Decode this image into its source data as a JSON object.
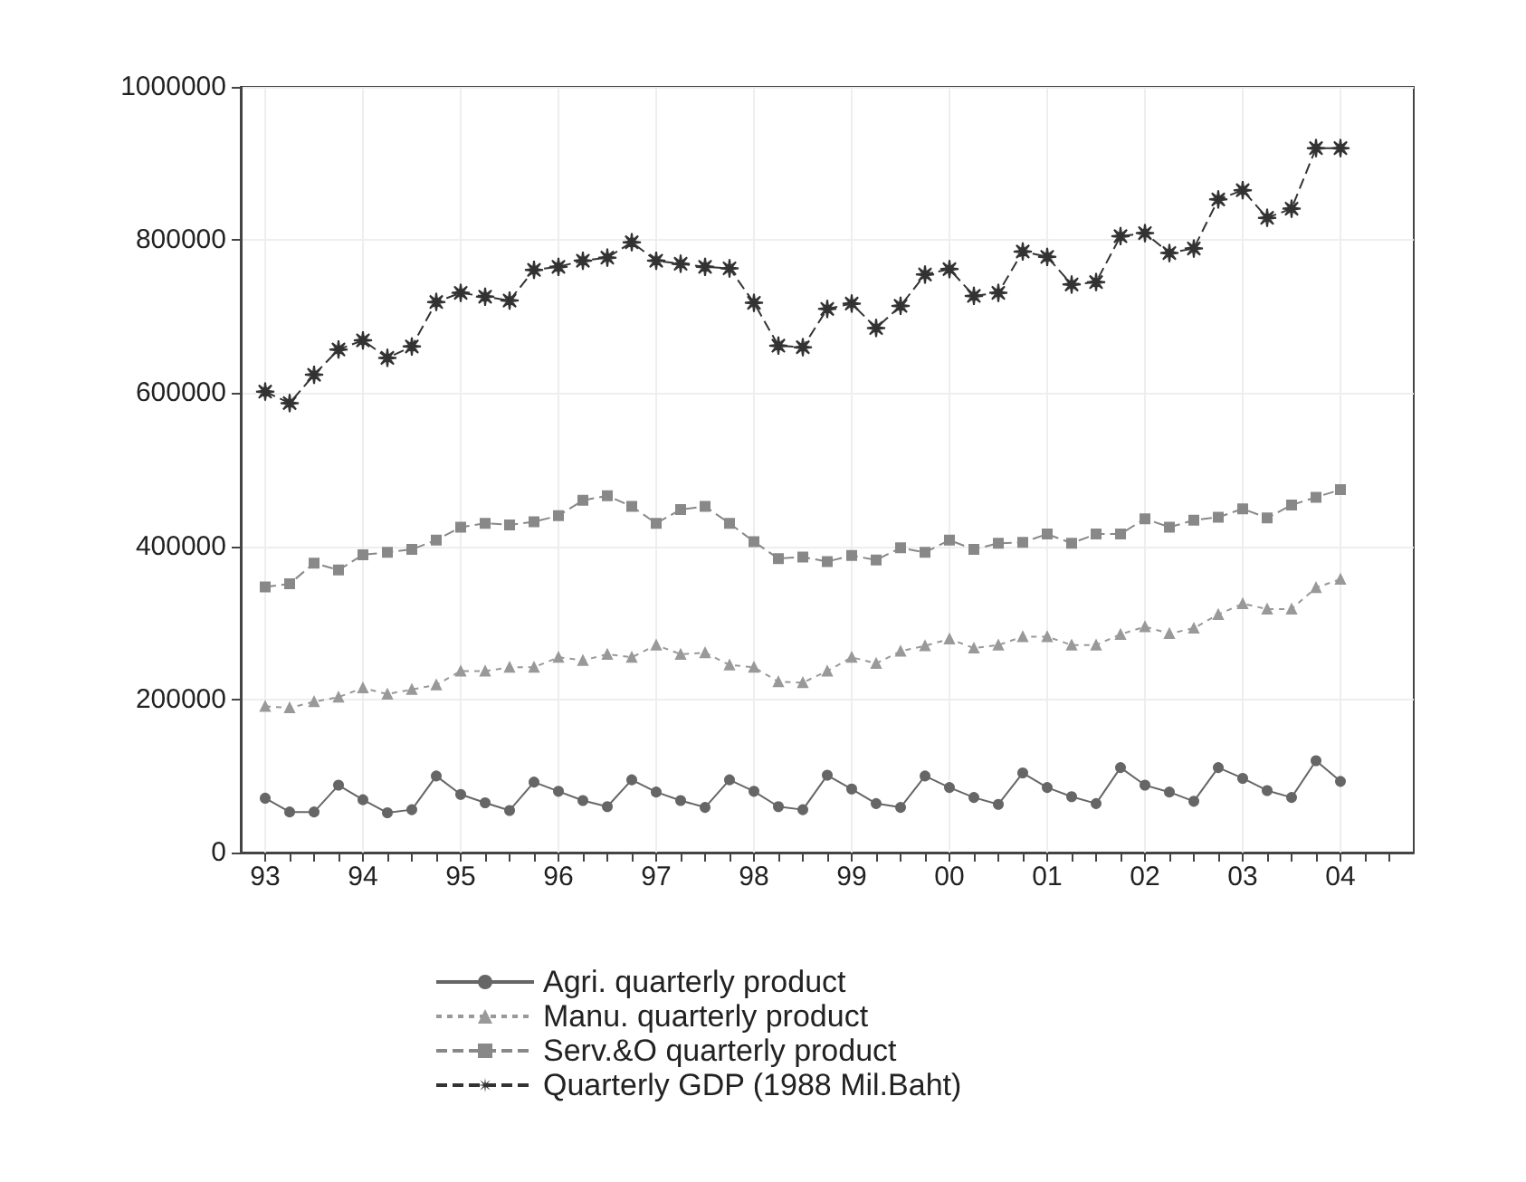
{
  "chart_data": {
    "type": "line",
    "x": [
      1993,
      1993.25,
      1993.5,
      1993.75,
      1994,
      1994.25,
      1994.5,
      1994.75,
      1995,
      1995.25,
      1995.5,
      1995.75,
      1996,
      1996.25,
      1996.5,
      1996.75,
      1997,
      1997.25,
      1997.5,
      1997.75,
      1998,
      1998.25,
      1998.5,
      1998.75,
      1999,
      1999.25,
      1999.5,
      1999.75,
      2000,
      2000.25,
      2000.5,
      2000.75,
      2001,
      2001.25,
      2001.5,
      2001.75,
      2002,
      2002.25,
      2002.5,
      2002.75,
      2003,
      2003.25,
      2003.5,
      2003.75,
      2004
    ],
    "series": [
      {
        "name": "Agri. quarterly product",
        "color": "#666666",
        "marker": "circle",
        "line_style": "solid",
        "values": [
          71000,
          53000,
          53000,
          88000,
          69000,
          52000,
          56000,
          100000,
          76000,
          65000,
          55000,
          92000,
          80000,
          68000,
          60000,
          95000,
          79000,
          68000,
          59000,
          95000,
          80000,
          60000,
          56000,
          101000,
          83000,
          64000,
          59000,
          100000,
          85000,
          72000,
          63000,
          104000,
          85000,
          73000,
          64000,
          111000,
          88000,
          79000,
          67000,
          111000,
          97000,
          81000,
          72000,
          120000,
          93000
        ]
      },
      {
        "name": "Manu. quarterly product",
        "color": "#999999",
        "marker": "triangle",
        "line_style": "dotted",
        "values": [
          191000,
          189000,
          197000,
          203000,
          215000,
          207000,
          213000,
          219000,
          237000,
          237000,
          242000,
          242000,
          255000,
          251000,
          259000,
          255000,
          271000,
          259000,
          261000,
          245000,
          242000,
          223000,
          222000,
          237000,
          255000,
          247000,
          263000,
          270000,
          279000,
          267000,
          271000,
          282000,
          282000,
          271000,
          271000,
          285000,
          295000,
          286000,
          293000,
          311000,
          325000,
          318000,
          318000,
          346000,
          357000
        ]
      },
      {
        "name": "Serv.&O quarterly product",
        "color": "#888888",
        "marker": "square",
        "line_style": "dashed",
        "values": [
          347000,
          351000,
          378000,
          369000,
          389000,
          392000,
          396000,
          408000,
          425000,
          430000,
          428000,
          432000,
          440000,
          460000,
          466000,
          452000,
          430000,
          448000,
          452000,
          430000,
          406000,
          384000,
          386000,
          380000,
          388000,
          382000,
          398000,
          392000,
          408000,
          396000,
          404000,
          405000,
          416000,
          404000,
          416000,
          416000,
          436000,
          425000,
          434000,
          438000,
          449000,
          437000,
          454000,
          464000,
          474000
        ]
      },
      {
        "name": "Quarterly GDP (1988 Mil.Baht)",
        "color": "#333333",
        "marker": "star",
        "line_style": "dashed",
        "values": [
          602000,
          587000,
          624000,
          657000,
          669000,
          646000,
          661000,
          719000,
          731000,
          726000,
          721000,
          761000,
          765000,
          773000,
          777000,
          797000,
          773000,
          769000,
          765000,
          763000,
          718000,
          662000,
          660000,
          710000,
          717000,
          685000,
          714000,
          755000,
          762000,
          727000,
          731000,
          785000,
          778000,
          742000,
          745000,
          805000,
          809000,
          783000,
          789000,
          853000,
          865000,
          829000,
          841000,
          920000,
          920000
        ]
      }
    ],
    "xlim": [
      1992.75,
      2004.75
    ],
    "xticks": [
      {
        "value": 1993,
        "label": "93"
      },
      {
        "value": 1993.25,
        "label": null
      },
      {
        "value": 1993.5,
        "label": null
      },
      {
        "value": 1993.75,
        "label": null
      },
      {
        "value": 1994,
        "label": "94"
      },
      {
        "value": 1994.25,
        "label": null
      },
      {
        "value": 1994.5,
        "label": null
      },
      {
        "value": 1994.75,
        "label": null
      },
      {
        "value": 1995,
        "label": "95"
      },
      {
        "value": 1995.25,
        "label": null
      },
      {
        "value": 1995.5,
        "label": null
      },
      {
        "value": 1995.75,
        "label": null
      },
      {
        "value": 1996,
        "label": "96"
      },
      {
        "value": 1996.25,
        "label": null
      },
      {
        "value": 1996.5,
        "label": null
      },
      {
        "value": 1996.75,
        "label": null
      },
      {
        "value": 1997,
        "label": "97"
      },
      {
        "value": 1997.25,
        "label": null
      },
      {
        "value": 1997.5,
        "label": null
      },
      {
        "value": 1997.75,
        "label": null
      },
      {
        "value": 1998,
        "label": "98"
      },
      {
        "value": 1998.25,
        "label": null
      },
      {
        "value": 1998.5,
        "label": null
      },
      {
        "value": 1998.75,
        "label": null
      },
      {
        "value": 1999,
        "label": "99"
      },
      {
        "value": 1999.25,
        "label": null
      },
      {
        "value": 1999.5,
        "label": null
      },
      {
        "value": 1999.75,
        "label": null
      },
      {
        "value": 2000,
        "label": "00"
      },
      {
        "value": 2000.25,
        "label": null
      },
      {
        "value": 2000.5,
        "label": null
      },
      {
        "value": 2000.75,
        "label": null
      },
      {
        "value": 2001,
        "label": "01"
      },
      {
        "value": 2001.25,
        "label": null
      },
      {
        "value": 2001.5,
        "label": null
      },
      {
        "value": 2001.75,
        "label": null
      },
      {
        "value": 2002,
        "label": "02"
      },
      {
        "value": 2002.25,
        "label": null
      },
      {
        "value": 2002.5,
        "label": null
      },
      {
        "value": 2002.75,
        "label": null
      },
      {
        "value": 2003,
        "label": "03"
      },
      {
        "value": 2003.25,
        "label": null
      },
      {
        "value": 2003.5,
        "label": null
      },
      {
        "value": 2003.75,
        "label": null
      },
      {
        "value": 2004,
        "label": "04"
      },
      {
        "value": 2004.25,
        "label": null
      },
      {
        "value": 2004.5,
        "label": null
      }
    ],
    "ylim": [
      0,
      1000000
    ],
    "yticks": [
      0,
      200000,
      400000,
      600000,
      800000,
      1000000
    ],
    "grid": true,
    "legend": "bottom"
  }
}
